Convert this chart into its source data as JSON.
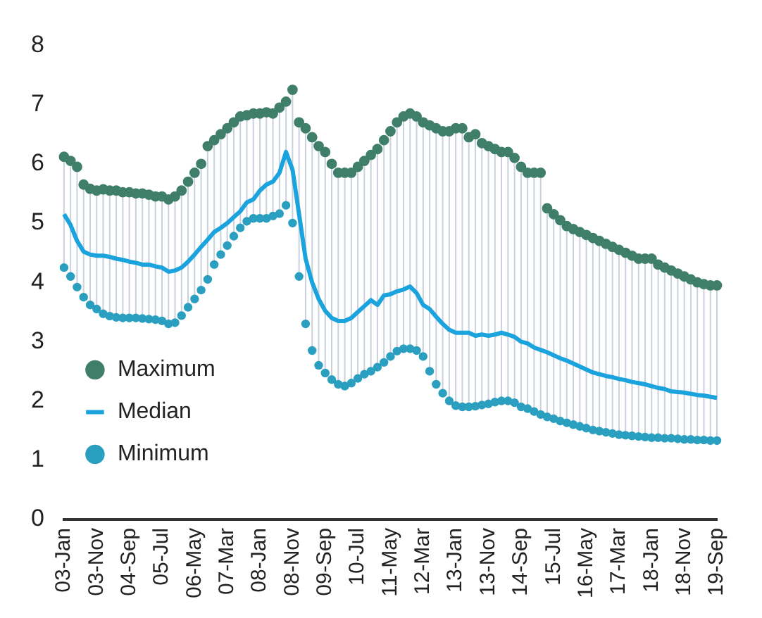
{
  "chart_data": {
    "type": "scatter",
    "categories": [
      "03-Jan",
      null,
      null,
      null,
      null,
      "03-Nov",
      null,
      null,
      null,
      null,
      "04-Sep",
      null,
      null,
      null,
      null,
      "05-Jul",
      null,
      null,
      null,
      null,
      "06-May",
      null,
      null,
      null,
      null,
      "07-Mar",
      null,
      null,
      null,
      null,
      "08-Jan",
      null,
      null,
      null,
      null,
      "08-Nov",
      null,
      null,
      null,
      null,
      "09-Sep",
      null,
      null,
      null,
      null,
      "10-Jul",
      null,
      null,
      null,
      null,
      "11-May",
      null,
      null,
      null,
      null,
      "12-Mar",
      null,
      null,
      null,
      null,
      "13-Jan",
      null,
      null,
      null,
      null,
      "13-Nov",
      null,
      null,
      null,
      null,
      "14-Sep",
      null,
      null,
      null,
      null,
      "15-Jul",
      null,
      null,
      null,
      null,
      "16-May",
      null,
      null,
      null,
      null,
      "17-Mar",
      null,
      null,
      null,
      null,
      "18-Jan",
      null,
      null,
      null,
      null,
      "18-Nov",
      null,
      null,
      null,
      null,
      "19-Sep"
    ],
    "series": [
      {
        "name": "Maximum",
        "marker": "circle",
        "color": "#3f7f6a",
        "values": [
          6.12,
          6.05,
          5.95,
          5.65,
          5.58,
          5.55,
          5.57,
          5.55,
          5.55,
          5.52,
          5.52,
          5.5,
          5.5,
          5.48,
          5.45,
          5.45,
          5.4,
          5.45,
          5.55,
          5.7,
          5.85,
          6.0,
          6.3,
          6.4,
          6.5,
          6.6,
          6.7,
          6.8,
          6.82,
          6.85,
          6.85,
          6.87,
          6.85,
          6.95,
          7.05,
          7.25,
          6.7,
          6.6,
          6.45,
          6.3,
          6.2,
          6.0,
          5.85,
          5.85,
          5.85,
          5.95,
          6.05,
          6.15,
          6.25,
          6.4,
          6.55,
          6.7,
          6.8,
          6.85,
          6.8,
          6.7,
          6.65,
          6.6,
          6.55,
          6.55,
          6.6,
          6.6,
          6.45,
          6.5,
          6.35,
          6.3,
          6.25,
          6.2,
          6.2,
          6.1,
          5.95,
          5.85,
          5.85,
          5.85,
          5.25,
          5.15,
          5.05,
          4.95,
          4.9,
          4.85,
          4.8,
          4.75,
          4.7,
          4.65,
          4.6,
          4.55,
          4.5,
          4.45,
          4.4,
          4.4,
          4.4,
          4.3,
          4.25,
          4.2,
          4.15,
          4.1,
          4.05,
          4.0,
          3.97,
          3.95,
          3.95
        ]
      },
      {
        "name": "Median",
        "type": "line",
        "marker": "none",
        "color": "#1aa3dc",
        "values": [
          5.15,
          4.97,
          4.7,
          4.52,
          4.47,
          4.45,
          4.45,
          4.43,
          4.4,
          4.38,
          4.35,
          4.33,
          4.3,
          4.3,
          4.27,
          4.25,
          4.18,
          4.2,
          4.25,
          4.35,
          4.47,
          4.6,
          4.72,
          4.85,
          4.92,
          5.0,
          5.1,
          5.2,
          5.35,
          5.4,
          5.55,
          5.65,
          5.7,
          5.85,
          6.2,
          5.9,
          5.15,
          4.4,
          4.0,
          3.72,
          3.52,
          3.4,
          3.35,
          3.35,
          3.4,
          3.5,
          3.6,
          3.7,
          3.62,
          3.78,
          3.8,
          3.85,
          3.88,
          3.93,
          3.82,
          3.62,
          3.55,
          3.42,
          3.3,
          3.2,
          3.15,
          3.15,
          3.15,
          3.1,
          3.12,
          3.1,
          3.12,
          3.15,
          3.12,
          3.08,
          3.0,
          2.97,
          2.9,
          2.86,
          2.82,
          2.77,
          2.72,
          2.68,
          2.63,
          2.58,
          2.53,
          2.48,
          2.45,
          2.42,
          2.4,
          2.37,
          2.35,
          2.32,
          2.3,
          2.28,
          2.25,
          2.22,
          2.2,
          2.16,
          2.15,
          2.14,
          2.12,
          2.1,
          2.09,
          2.07,
          2.05
        ]
      },
      {
        "name": "Minimum",
        "marker": "circle",
        "color": "#2a9fc0",
        "values": [
          4.25,
          4.1,
          3.92,
          3.75,
          3.62,
          3.55,
          3.47,
          3.43,
          3.41,
          3.4,
          3.4,
          3.4,
          3.39,
          3.38,
          3.37,
          3.35,
          3.3,
          3.32,
          3.44,
          3.58,
          3.72,
          3.87,
          4.05,
          4.3,
          4.47,
          4.62,
          4.78,
          4.92,
          5.03,
          5.08,
          5.08,
          5.08,
          5.12,
          5.16,
          5.3,
          5.0,
          4.1,
          3.3,
          2.85,
          2.6,
          2.47,
          2.36,
          2.28,
          2.25,
          2.3,
          2.38,
          2.45,
          2.5,
          2.57,
          2.65,
          2.75,
          2.84,
          2.88,
          2.88,
          2.85,
          2.75,
          2.5,
          2.28,
          2.13,
          2.0,
          1.92,
          1.9,
          1.9,
          1.91,
          1.93,
          1.95,
          1.98,
          2.0,
          2.0,
          1.97,
          1.9,
          1.87,
          1.82,
          1.77,
          1.73,
          1.7,
          1.66,
          1.63,
          1.6,
          1.57,
          1.54,
          1.51,
          1.49,
          1.47,
          1.45,
          1.43,
          1.42,
          1.41,
          1.4,
          1.39,
          1.38,
          1.38,
          1.37,
          1.37,
          1.36,
          1.35,
          1.35,
          1.34,
          1.34,
          1.33,
          1.33
        ]
      }
    ],
    "ylim": [
      0,
      8
    ],
    "yticks": [
      0,
      1,
      2,
      3,
      4,
      5,
      6,
      7,
      8
    ],
    "grid": false,
    "legend": "bottom left"
  }
}
